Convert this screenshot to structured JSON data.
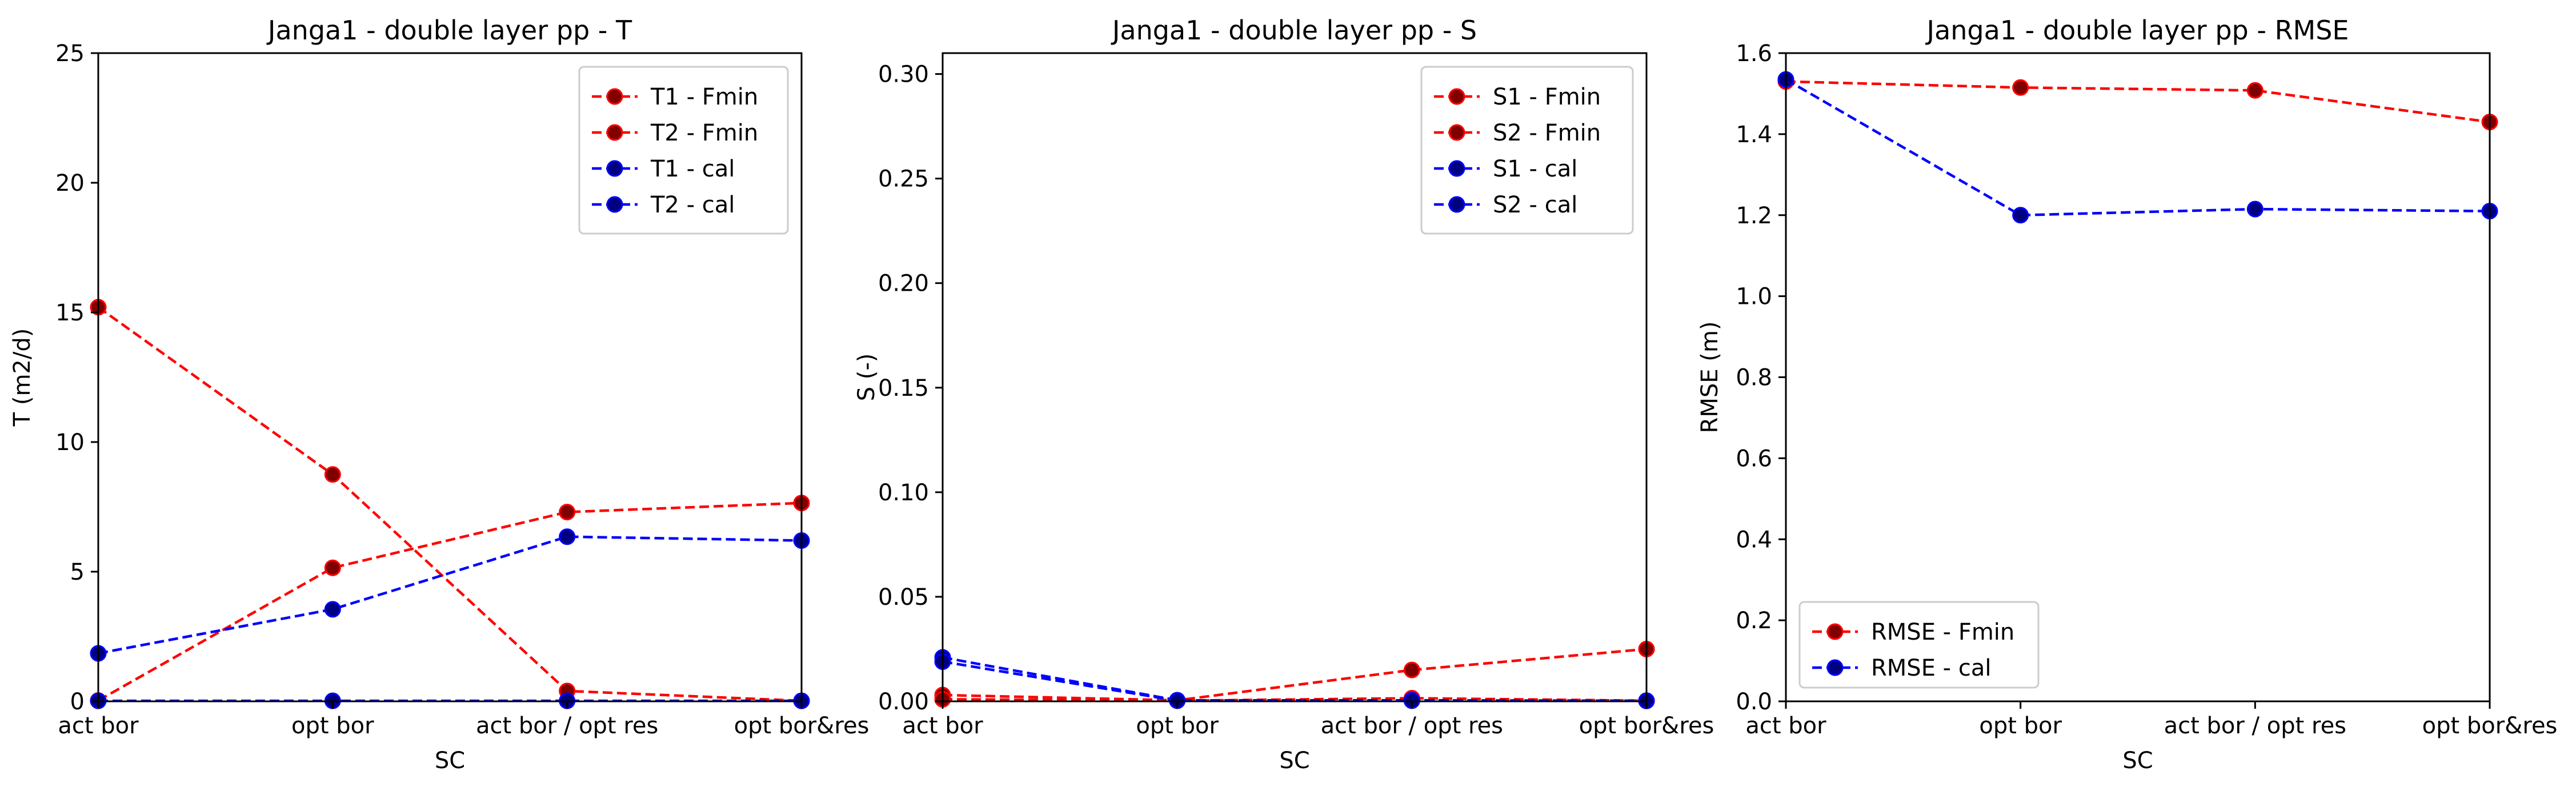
{
  "chart_data": [
    {
      "type": "line",
      "title": "Janga1 - double layer pp - T",
      "xlabel": "SC",
      "ylabel": "T (m2/d)",
      "categories": [
        "act bor",
        "opt bor",
        "act bor / opt res",
        "opt bor&res"
      ],
      "ylim": [
        0,
        25
      ],
      "yticks": [
        0,
        5,
        10,
        15,
        20,
        25
      ],
      "ytick_labels": [
        "0",
        "5",
        "10",
        "15",
        "20",
        "25"
      ],
      "legend_position": "upper right",
      "grid": false,
      "series": [
        {
          "name": "T1 - Fmin",
          "color": "#ff0000",
          "marker_face": "#800000",
          "values": [
            15.2,
            8.75,
            0.4,
            0.02
          ]
        },
        {
          "name": "T2 - Fmin",
          "color": "#ff0000",
          "marker_face": "#800000",
          "values": [
            0.03,
            5.15,
            7.3,
            7.65
          ]
        },
        {
          "name": "T1 - cal",
          "color": "#0000ff",
          "marker_face": "#000080",
          "values": [
            1.85,
            3.55,
            6.35,
            6.2
          ]
        },
        {
          "name": "T2 - cal",
          "color": "#0000ff",
          "marker_face": "#000080",
          "values": [
            0.02,
            0.02,
            0.02,
            0.02
          ]
        }
      ]
    },
    {
      "type": "line",
      "title": "Janga1 - double layer pp - S",
      "xlabel": "SC",
      "ylabel": "S (-)",
      "categories": [
        "act bor",
        "opt bor",
        "act bor / opt res",
        "opt bor&res"
      ],
      "ylim": [
        0,
        0.31
      ],
      "yticks": [
        0,
        0.05,
        0.1,
        0.15,
        0.2,
        0.25,
        0.3
      ],
      "ytick_labels": [
        "0.00",
        "0.05",
        "0.10",
        "0.15",
        "0.20",
        "0.25",
        "0.30"
      ],
      "legend_position": "upper right",
      "grid": false,
      "series": [
        {
          "name": "S1 - Fmin",
          "color": "#ff0000",
          "marker_face": "#800000",
          "values": [
            0.003,
            0.0005,
            0.015,
            0.025
          ]
        },
        {
          "name": "S2 - Fmin",
          "color": "#ff0000",
          "marker_face": "#800000",
          "values": [
            0.001,
            0.0003,
            0.0015,
            0.0003
          ]
        },
        {
          "name": "S1 - cal",
          "color": "#0000ff",
          "marker_face": "#000080",
          "values": [
            0.021,
            0.0005,
            0.0005,
            0.0003
          ]
        },
        {
          "name": "S2 - cal",
          "color": "#0000ff",
          "marker_face": "#000080",
          "values": [
            0.019,
            0.0003,
            0.0003,
            0.0002
          ]
        }
      ]
    },
    {
      "type": "line",
      "title": "Janga1 - double layer pp - RMSE",
      "xlabel": "SC",
      "ylabel": "RMSE (m)",
      "categories": [
        "act bor",
        "opt bor",
        "act bor / opt res",
        "opt bor&res"
      ],
      "ylim": [
        0,
        1.6
      ],
      "yticks": [
        0,
        0.2,
        0.4,
        0.6,
        0.8,
        1.0,
        1.2,
        1.4,
        1.6
      ],
      "ytick_labels": [
        "0.0",
        "0.2",
        "0.4",
        "0.6",
        "0.8",
        "1.0",
        "1.2",
        "1.4",
        "1.6"
      ],
      "legend_position": "lower left",
      "grid": false,
      "series": [
        {
          "name": "RMSE - Fmin",
          "color": "#ff0000",
          "marker_face": "#800000",
          "values": [
            1.53,
            1.515,
            1.508,
            1.43
          ]
        },
        {
          "name": "RMSE - cal",
          "color": "#0000ff",
          "marker_face": "#000080",
          "values": [
            1.535,
            1.2,
            1.215,
            1.21
          ]
        }
      ]
    }
  ]
}
